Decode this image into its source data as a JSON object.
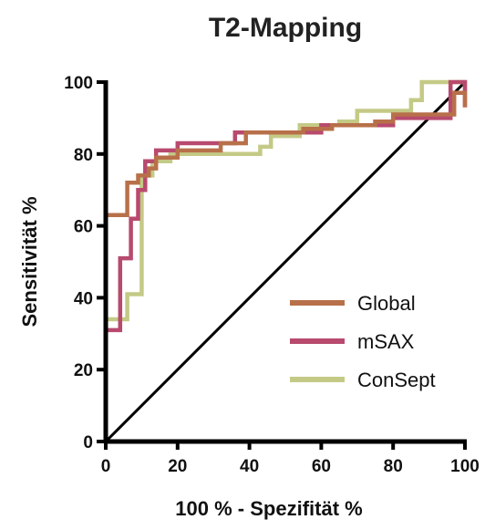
{
  "chart_data": {
    "type": "line",
    "title": "T2-Mapping",
    "xlabel": "100 % - Spezifität %",
    "ylabel": "Sensitivität %",
    "xlim": [
      0,
      100
    ],
    "ylim": [
      0,
      100
    ],
    "x_ticks": [
      "0",
      "20",
      "40",
      "60",
      "80",
      "100"
    ],
    "y_ticks": [
      "0",
      "20",
      "40",
      "60",
      "80",
      "100"
    ],
    "grid": false,
    "legend_position": "bottom-right",
    "reference_line": {
      "x": [
        0,
        100
      ],
      "y": [
        0,
        100
      ],
      "color": "#000000"
    },
    "series": [
      {
        "name": "Global",
        "color": "#B8704A",
        "x": [
          0,
          0,
          6,
          6,
          9,
          9,
          12,
          12,
          14,
          14,
          20,
          20,
          32,
          32,
          39,
          39,
          55,
          55,
          63,
          63,
          75,
          75,
          80,
          80,
          97,
          97,
          100,
          100
        ],
        "y": [
          0,
          63,
          63,
          72,
          72,
          74,
          74,
          76,
          76,
          79,
          79,
          81,
          81,
          83,
          83,
          86,
          86,
          87,
          87,
          88,
          88,
          89,
          89,
          91,
          91,
          97,
          97,
          93
        ]
      },
      {
        "name": "mSAX",
        "color": "#B84A6E",
        "x": [
          0,
          0,
          4,
          4,
          7,
          7,
          9,
          9,
          11,
          11,
          14,
          14,
          20,
          20,
          36,
          36,
          60,
          60,
          80,
          80,
          96,
          96,
          100,
          100
        ],
        "y": [
          0,
          31,
          31,
          51,
          51,
          62,
          62,
          70,
          70,
          78,
          78,
          81,
          81,
          83,
          83,
          86,
          86,
          88,
          88,
          90,
          90,
          100,
          100,
          93
        ]
      },
      {
        "name": "ConSept",
        "color": "#C4CA86",
        "x": [
          0,
          0,
          6,
          6,
          10,
          10,
          13,
          13,
          18,
          18,
          43,
          43,
          46,
          46,
          54,
          54,
          65,
          65,
          70,
          70,
          85,
          85,
          88,
          88,
          100,
          100
        ],
        "y": [
          0,
          34,
          34,
          41,
          41,
          74,
          74,
          78,
          78,
          80,
          80,
          82,
          82,
          85,
          85,
          88,
          88,
          89,
          89,
          92,
          92,
          95,
          95,
          100,
          100,
          97
        ]
      }
    ]
  }
}
